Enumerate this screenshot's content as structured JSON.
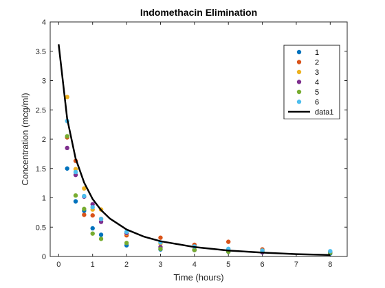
{
  "chart_data": {
    "type": "scatter",
    "title": "Indomethacin  Elimination",
    "xlabel": "Time (hours)",
    "ylabel": "Concentration (mcg/ml)",
    "xlim": [
      -0.25,
      8.5
    ],
    "ylim": [
      0,
      4
    ],
    "x_ticks": [
      "0",
      "1",
      "2",
      "3",
      "4",
      "5",
      "6",
      "7",
      "8"
    ],
    "y_ticks": [
      "0",
      "0.5",
      "1",
      "1.5",
      "2",
      "2.5",
      "3",
      "3.5",
      "4"
    ],
    "grid": false,
    "legend_position": "top-right",
    "time_points": [
      0.25,
      0.5,
      0.75,
      1,
      1.25,
      2,
      3,
      4,
      5,
      6,
      8
    ],
    "series": [
      {
        "name": "1",
        "color": "#0072BD",
        "values": [
          1.5,
          0.94,
          0.78,
          0.48,
          0.37,
          0.19,
          0.12,
          0.11,
          0.08,
          0.07,
          0.05
        ]
      },
      {
        "name": "2",
        "color": "#D95319",
        "values": [
          2.03,
          1.63,
          0.71,
          0.7,
          0.64,
          0.36,
          0.32,
          0.2,
          0.25,
          0.12,
          0.08
        ]
      },
      {
        "name": "3",
        "color": "#EDB120",
        "values": [
          2.72,
          1.49,
          1.16,
          0.8,
          0.8,
          0.39,
          0.22,
          0.12,
          0.11,
          0.08,
          0.08
        ]
      },
      {
        "name": "4",
        "color": "#7E2F8E",
        "values": [
          1.85,
          1.39,
          1.02,
          0.89,
          0.59,
          0.4,
          0.16,
          0.11,
          0.1,
          0.07,
          0.07
        ]
      },
      {
        "name": "5",
        "color": "#77AC30",
        "values": [
          2.05,
          1.04,
          0.81,
          0.39,
          0.3,
          0.23,
          0.13,
          0.11,
          0.08,
          0.1,
          0.06
        ]
      },
      {
        "name": "6",
        "color": "#4DBEEE",
        "values": [
          2.31,
          1.44,
          1.03,
          0.84,
          0.64,
          0.42,
          0.24,
          0.17,
          0.13,
          0.1,
          0.09
        ]
      }
    ],
    "fit": {
      "name": "data1",
      "color": "#000000",
      "x": [
        0,
        0.25,
        0.5,
        0.75,
        1,
        1.25,
        1.5,
        2,
        2.5,
        3,
        3.5,
        4,
        5,
        6,
        7,
        8
      ],
      "values": [
        3.62,
        2.35,
        1.67,
        1.26,
        0.98,
        0.79,
        0.65,
        0.46,
        0.34,
        0.26,
        0.21,
        0.16,
        0.1,
        0.065,
        0.04,
        0.025
      ]
    }
  }
}
